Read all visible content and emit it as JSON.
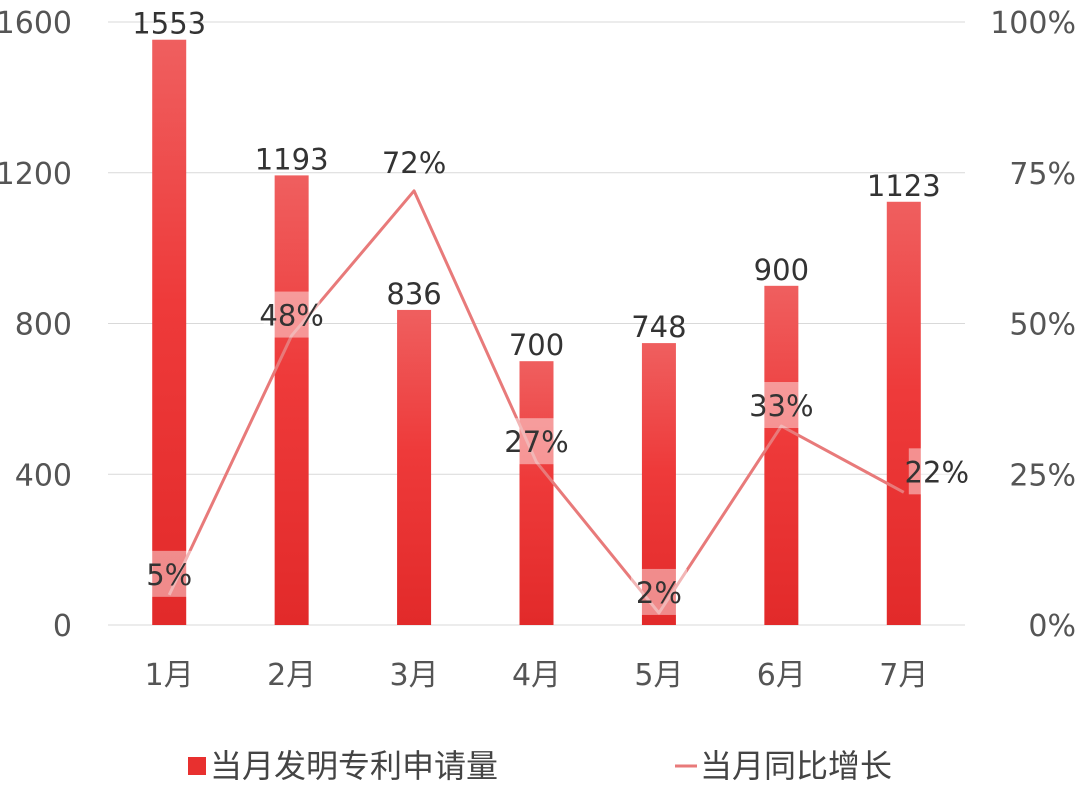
{
  "chart_data": {
    "type": "bar+line",
    "categories": [
      "1月",
      "2月",
      "3月",
      "4月",
      "5月",
      "6月",
      "7月"
    ],
    "series": [
      {
        "name": "当月发明专利申请量",
        "type": "bar",
        "axis": "left",
        "values": [
          1553,
          1193,
          836,
          700,
          748,
          900,
          1123
        ],
        "labels": [
          "1553",
          "1193",
          "836",
          "700",
          "748",
          "900",
          "1123"
        ],
        "color": "#e8302f"
      },
      {
        "name": "当月同比增长",
        "type": "line",
        "axis": "right",
        "values": [
          0.05,
          0.48,
          0.72,
          0.27,
          0.02,
          0.33,
          0.22
        ],
        "labels": [
          "5%",
          "48%",
          "72%",
          "27%",
          "2%",
          "33%",
          "22%"
        ],
        "color": "#e87a7a"
      }
    ],
    "left_axis": {
      "ylim": [
        0,
        1600
      ],
      "ticks": [
        "0",
        "400",
        "800",
        "1200",
        "1600"
      ]
    },
    "right_axis": {
      "ylim": [
        0,
        1
      ],
      "ticks": [
        "0%",
        "25%",
        "50%",
        "75%",
        "100%"
      ]
    },
    "grid": true,
    "legend_position": "bottom"
  }
}
